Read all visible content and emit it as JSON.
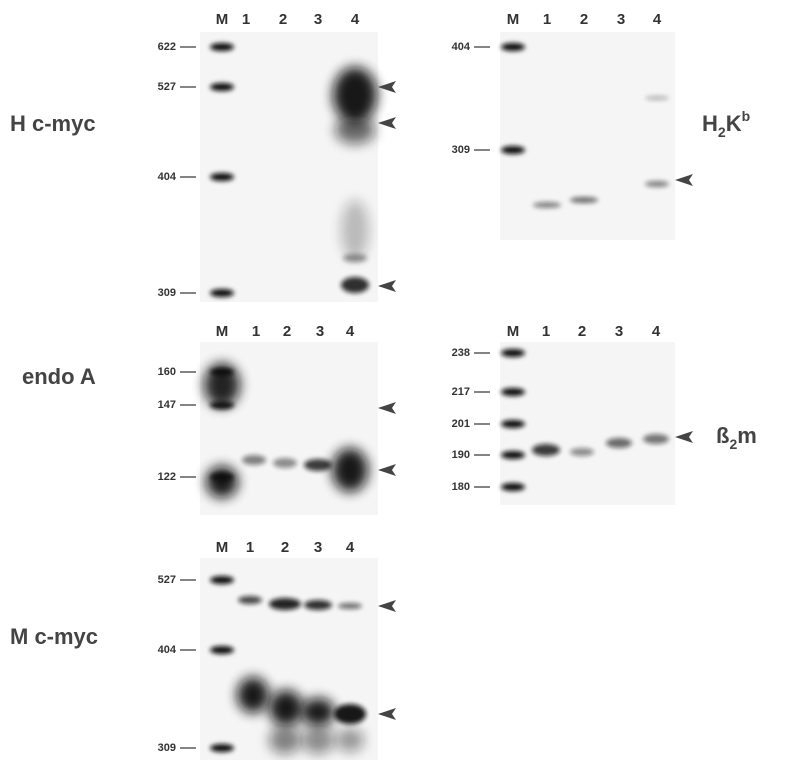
{
  "panels": [
    {
      "label": [
        {
          "text": "H c-myc"
        }
      ],
      "lanes": [
        "M",
        "1",
        "2",
        "3",
        "4"
      ],
      "markers": [
        622,
        527,
        404,
        309
      ]
    },
    {
      "label": [
        {
          "text": "H"
        },
        {
          "text": "2",
          "style": "sub"
        },
        {
          "text": "K"
        },
        {
          "text": "b",
          "style": "sup"
        }
      ],
      "lanes": [
        "M",
        "1",
        "2",
        "3",
        "4"
      ],
      "markers": [
        404,
        309
      ]
    },
    {
      "label": [
        {
          "text": "endo A"
        }
      ],
      "lanes": [
        "M",
        "1",
        "2",
        "3",
        "4"
      ],
      "markers": [
        160,
        147,
        122
      ]
    },
    {
      "label": [
        {
          "text": "ß"
        },
        {
          "text": "2",
          "style": "sub"
        },
        {
          "text": "m"
        }
      ],
      "lanes": [
        "M",
        "1",
        "2",
        "3",
        "4"
      ],
      "markers": [
        238,
        217,
        201,
        190,
        180
      ]
    },
    {
      "label": [
        {
          "text": "M c-myc"
        }
      ],
      "lanes": [
        "M",
        "1",
        "2",
        "3",
        "4"
      ],
      "markers": [
        527,
        404,
        309
      ]
    }
  ]
}
